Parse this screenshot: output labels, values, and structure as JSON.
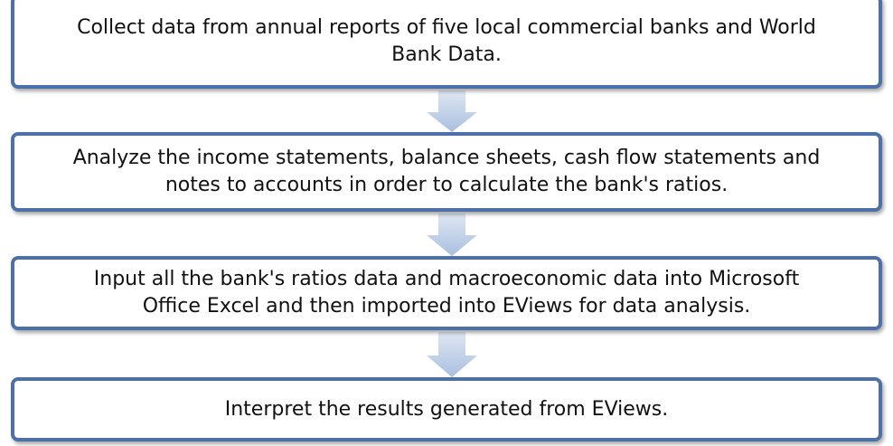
{
  "nodes": [
    {
      "lines": [
        "Collect data from annual reports of five local commercial banks and World",
        "Bank Data."
      ]
    },
    {
      "lines": [
        "Analyze the income statements, balance sheets, cash flow statements and",
        "notes to accounts in order to calculate the bank's ratios."
      ]
    },
    {
      "lines": [
        "Input all the bank's ratios data and macroeconomic data into Microsoft",
        "Office Excel and then imported into EViews for data analysis."
      ]
    },
    {
      "lines": [
        "Interpret the results generated from EViews."
      ]
    }
  ]
}
